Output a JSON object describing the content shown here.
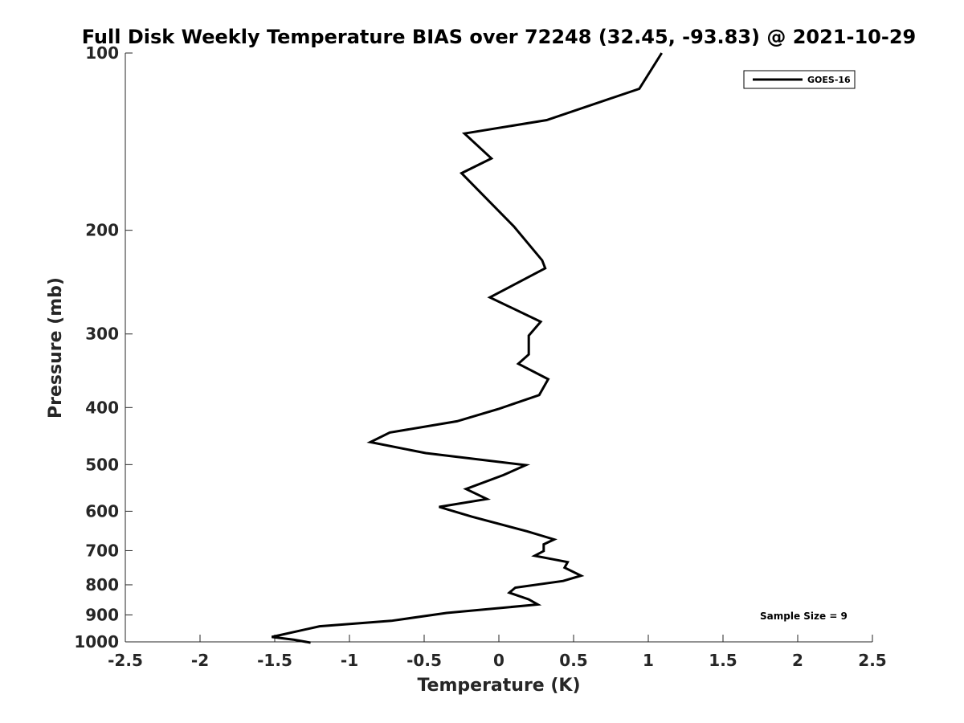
{
  "chart_data": {
    "type": "line",
    "title": "Full Disk Weekly Temperature BIAS over 72248 (32.45, -93.83) @ 2021-10-29",
    "xlabel": "Temperature (K)",
    "ylabel": "Pressure (mb)",
    "xlim": [
      -2.5,
      2.5
    ],
    "ylim": [
      100,
      1000
    ],
    "y_scale": "log",
    "y_reversed": true,
    "grid": false,
    "x_ticks": [
      -2.5,
      -2,
      -1.5,
      -1,
      -0.5,
      0,
      0.5,
      1,
      1.5,
      2,
      2.5
    ],
    "x_tick_labels": [
      "-2.5",
      "-2",
      "-1.5",
      "-1",
      "-0.5",
      "0",
      "0.5",
      "1",
      "1.5",
      "2",
      "2.5"
    ],
    "y_ticks": [
      100,
      200,
      300,
      400,
      500,
      600,
      700,
      800,
      900,
      1000
    ],
    "y_tick_labels": [
      "100",
      "200",
      "300",
      "400",
      "500",
      "600",
      "700",
      "800",
      "900",
      "1000"
    ],
    "legend": {
      "position": "top-right",
      "entries": [
        "GOES-16"
      ]
    },
    "annotation": "Sample Size = 9",
    "series": [
      {
        "name": "GOES-16",
        "color": "#000000",
        "x": [
          1.09,
          0.94,
          0.32,
          -0.23,
          -0.05,
          -0.25,
          0.1,
          0.29,
          0.31,
          -0.06,
          0.28,
          0.2,
          0.2,
          0.13,
          0.33,
          0.27,
          0.0,
          -0.28,
          -0.73,
          -0.86,
          -0.49,
          0.18,
          0.03,
          -0.22,
          -0.08,
          -0.4,
          -0.18,
          0.19,
          0.37,
          0.3,
          0.3,
          0.24,
          0.46,
          0.44,
          0.55,
          0.43,
          0.11,
          0.07,
          0.2,
          0.26,
          -0.35,
          -0.72,
          -1.2,
          -1.52,
          -1.37,
          -1.26
        ],
        "y": [
          100,
          115,
          130,
          137,
          151,
          160,
          197,
          225,
          232,
          260,
          286,
          302,
          325,
          337,
          358,
          381,
          402,
          422,
          441,
          458,
          478,
          501,
          521,
          550,
          572,
          590,
          613,
          649,
          670,
          683,
          701,
          714,
          732,
          748,
          772,
          788,
          809,
          825,
          847,
          864,
          893,
          921,
          941,
          981,
          992,
          1003
        ]
      }
    ]
  }
}
